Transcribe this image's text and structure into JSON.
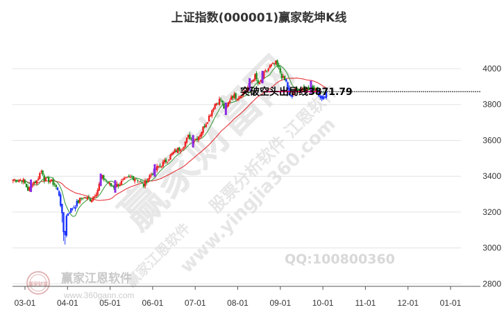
{
  "chart_data": {
    "type": "candlestick",
    "title": "上证指数(000001)赢家乾坤K线",
    "x_ticks": [
      "03-01",
      "04-01",
      "05-01",
      "06-01",
      "07-01",
      "08-01",
      "09-01",
      "10-01",
      "11-01",
      "12-01",
      "01-01"
    ],
    "y_ticks": [
      2800,
      3000,
      3200,
      3400,
      3600,
      3800,
      4000
    ],
    "ylim": [
      2790,
      4170
    ],
    "grid": true,
    "annotation": {
      "text": "突破空头出局线3871.79",
      "value": 3871.79,
      "color": "#ee1177"
    },
    "anchors": [
      {
        "m": -0.05,
        "v": 3380
      },
      {
        "m": 0.08,
        "v": 3320
      },
      {
        "m": 0.18,
        "v": 3365
      },
      {
        "m": 0.28,
        "v": 3372
      },
      {
        "m": 0.33,
        "v": 3410
      },
      {
        "m": 0.4,
        "v": 3435
      },
      {
        "m": 0.46,
        "v": 3380
      },
      {
        "m": 0.58,
        "v": 3378
      },
      {
        "m": 0.7,
        "v": 3355
      },
      {
        "m": 0.8,
        "v": 3300
      },
      {
        "m": 0.86,
        "v": 3210
      },
      {
        "m": 0.9,
        "v": 3100
      },
      {
        "m": 0.93,
        "v": 3050
      },
      {
        "m": 0.98,
        "v": 3190
      },
      {
        "m": 1.15,
        "v": 3230
      },
      {
        "m": 1.35,
        "v": 3285
      },
      {
        "m": 1.55,
        "v": 3270
      },
      {
        "m": 1.7,
        "v": 3320
      },
      {
        "m": 1.8,
        "v": 3395
      },
      {
        "m": 1.9,
        "v": 3380
      },
      {
        "m": 2.0,
        "v": 3350
      },
      {
        "m": 2.1,
        "v": 3340
      },
      {
        "m": 2.3,
        "v": 3372
      },
      {
        "m": 2.5,
        "v": 3395
      },
      {
        "m": 2.65,
        "v": 3385
      },
      {
        "m": 2.78,
        "v": 3345
      },
      {
        "m": 2.9,
        "v": 3395
      },
      {
        "m": 3.1,
        "v": 3445
      },
      {
        "m": 3.3,
        "v": 3482
      },
      {
        "m": 3.5,
        "v": 3535
      },
      {
        "m": 3.7,
        "v": 3565
      },
      {
        "m": 3.85,
        "v": 3625
      },
      {
        "m": 3.95,
        "v": 3595
      },
      {
        "m": 4.1,
        "v": 3630
      },
      {
        "m": 4.3,
        "v": 3720
      },
      {
        "m": 4.45,
        "v": 3800
      },
      {
        "m": 4.6,
        "v": 3830
      },
      {
        "m": 4.7,
        "v": 3765
      },
      {
        "m": 4.85,
        "v": 3850
      },
      {
        "m": 5.0,
        "v": 3842
      },
      {
        "m": 5.2,
        "v": 3880
      },
      {
        "m": 5.4,
        "v": 3960
      },
      {
        "m": 5.5,
        "v": 3905
      },
      {
        "m": 5.6,
        "v": 3965
      },
      {
        "m": 5.75,
        "v": 4010
      },
      {
        "m": 5.9,
        "v": 4030
      },
      {
        "m": 5.98,
        "v": 3990
      },
      {
        "m": 6.05,
        "v": 3950
      },
      {
        "m": 6.15,
        "v": 3920
      },
      {
        "m": 6.22,
        "v": 3830
      },
      {
        "m": 6.35,
        "v": 3880
      },
      {
        "m": 6.55,
        "v": 3880
      },
      {
        "m": 6.75,
        "v": 3900
      },
      {
        "m": 6.9,
        "v": 3860
      },
      {
        "m": 7.0,
        "v": 3835
      },
      {
        "m": 7.08,
        "v": 3865
      }
    ],
    "purple_bars_m": [
      0.14,
      1.78,
      2.12,
      3.05,
      3.95,
      4.72,
      5.28,
      5.58,
      6.72
    ],
    "blue_from_m": 0.75,
    "blue_to_m": 1.22,
    "blue2_from_m": 6.12,
    "blue2_to_m": 6.3,
    "blue3_from_m": 6.88,
    "blue3_to_m": 7.1
  },
  "watermarks": {
    "big": "赢家财富网",
    "diag1": "股票分析软件 江恩软件",
    "diag2": "www.yingjia360.com",
    "diag3": "赢家江恩软件",
    "qq": "QQ:100800360",
    "logo_text": "赢家江恩软件",
    "logo_url": "www.360gann.com",
    "seal": "赢家财富"
  }
}
